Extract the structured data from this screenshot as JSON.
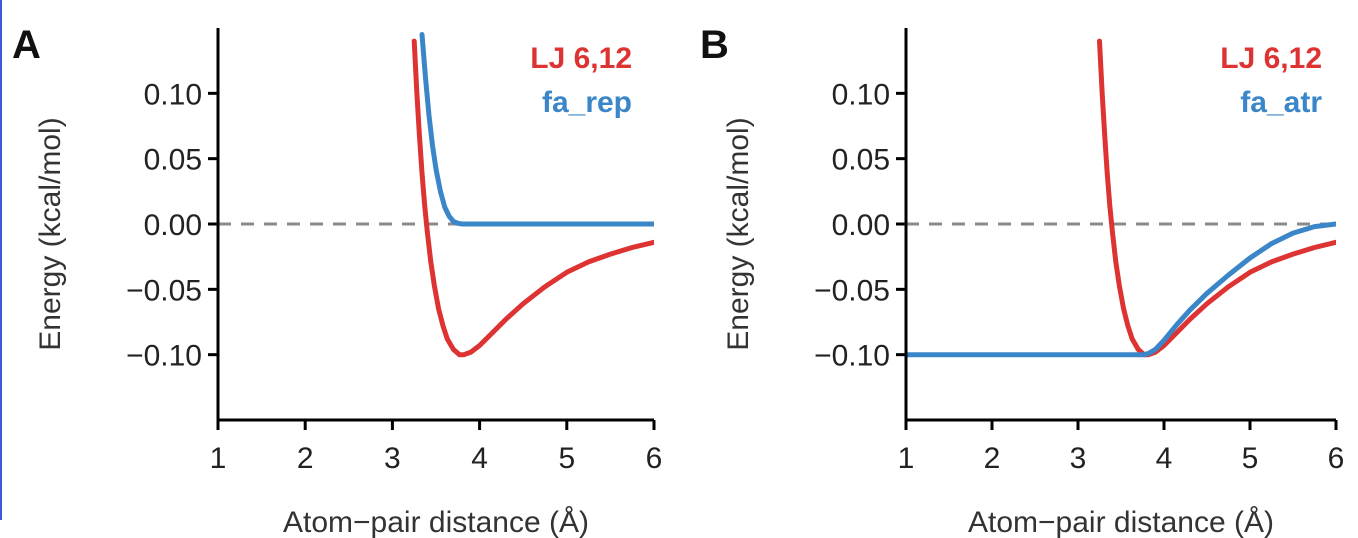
{
  "accent_colors": {
    "red": "#dd3333",
    "blue": "#3a86c8",
    "zero_line": "#8a8a8a"
  },
  "chart_data": [
    {
      "type": "line",
      "panel_label": "A",
      "xlabel": "Atom−pair distance (Å)",
      "ylabel": "Energy (kcal/mol)",
      "xlim": [
        1,
        6
      ],
      "ylim": [
        -0.15,
        0.15
      ],
      "xticks": [
        1,
        2,
        3,
        4,
        5,
        6
      ],
      "xtick_labels": [
        "1",
        "2",
        "3",
        "4",
        "5",
        "6"
      ],
      "yticks": [
        0.1,
        0.05,
        0.0,
        -0.05,
        -0.1
      ],
      "ytick_labels": [
        "0.10",
        "0.05",
        "0.00",
        "−0.05",
        "−0.10"
      ],
      "zero_line": true,
      "grid": false,
      "legend_position": "top-right",
      "series": [
        {
          "name": "LJ 6,12",
          "color": "#dd3333",
          "x": [
            3.25,
            3.28,
            3.31,
            3.34,
            3.37,
            3.4,
            3.44,
            3.48,
            3.53,
            3.58,
            3.63,
            3.7,
            3.77,
            3.82,
            3.9,
            4.0,
            4.15,
            4.3,
            4.5,
            4.75,
            5.0,
            5.25,
            5.5,
            5.75,
            6.0
          ],
          "y": [
            0.14,
            0.101,
            0.068,
            0.039,
            0.014,
            -0.006,
            -0.029,
            -0.047,
            -0.065,
            -0.078,
            -0.088,
            -0.096,
            -0.1,
            -0.1,
            -0.098,
            -0.093,
            -0.083,
            -0.073,
            -0.061,
            -0.048,
            -0.037,
            -0.029,
            -0.023,
            -0.018,
            -0.014
          ]
        },
        {
          "name": "fa_rep",
          "color": "#3a86c8",
          "x": [
            3.34,
            3.38,
            3.42,
            3.46,
            3.5,
            3.55,
            3.6,
            3.65,
            3.7,
            3.75,
            3.8,
            3.9,
            4.5,
            5.0,
            6.0
          ],
          "y": [
            0.145,
            0.112,
            0.083,
            0.06,
            0.042,
            0.025,
            0.013,
            0.006,
            0.002,
            0.0005,
            0.0,
            0.0,
            0.0,
            0.0,
            0.0
          ]
        }
      ]
    },
    {
      "type": "line",
      "panel_label": "B",
      "xlabel": "Atom−pair distance (Å)",
      "ylabel": "Energy (kcal/mol)",
      "xlim": [
        1,
        6
      ],
      "ylim": [
        -0.15,
        0.15
      ],
      "xticks": [
        1,
        2,
        3,
        4,
        5,
        6
      ],
      "xtick_labels": [
        "1",
        "2",
        "3",
        "4",
        "5",
        "6"
      ],
      "yticks": [
        0.1,
        0.05,
        0.0,
        -0.05,
        -0.1
      ],
      "ytick_labels": [
        "0.10",
        "0.05",
        "0.00",
        "−0.05",
        "−0.10"
      ],
      "zero_line": true,
      "grid": false,
      "legend_position": "top-right",
      "series": [
        {
          "name": "LJ 6,12",
          "color": "#dd3333",
          "x": [
            3.25,
            3.28,
            3.31,
            3.34,
            3.37,
            3.4,
            3.44,
            3.48,
            3.53,
            3.58,
            3.63,
            3.7,
            3.77,
            3.82,
            3.9,
            4.0,
            4.15,
            4.3,
            4.5,
            4.75,
            5.0,
            5.25,
            5.5,
            5.75,
            6.0
          ],
          "y": [
            0.14,
            0.101,
            0.068,
            0.039,
            0.014,
            -0.006,
            -0.029,
            -0.047,
            -0.065,
            -0.078,
            -0.088,
            -0.096,
            -0.1,
            -0.1,
            -0.098,
            -0.093,
            -0.083,
            -0.073,
            -0.061,
            -0.048,
            -0.037,
            -0.029,
            -0.023,
            -0.018,
            -0.014
          ]
        },
        {
          "name": "fa_atr",
          "color": "#3a86c8",
          "x": [
            1.0,
            2.0,
            3.0,
            3.7,
            3.77,
            3.82,
            3.9,
            4.0,
            4.15,
            4.3,
            4.5,
            4.75,
            5.0,
            5.25,
            5.5,
            5.75,
            6.0
          ],
          "y": [
            -0.1,
            -0.1,
            -0.1,
            -0.1,
            -0.1,
            -0.099,
            -0.096,
            -0.089,
            -0.077,
            -0.066,
            -0.053,
            -0.039,
            -0.026,
            -0.015,
            -0.007,
            -0.002,
            0.0
          ]
        }
      ]
    }
  ]
}
